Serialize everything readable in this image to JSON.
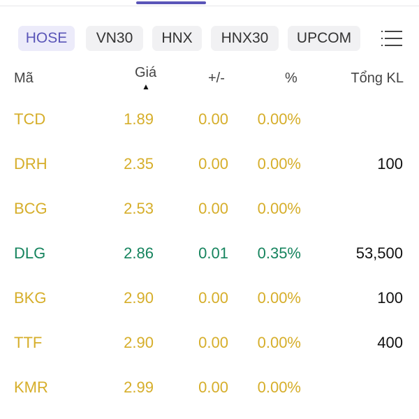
{
  "tabs": [
    "HOSE",
    "VN30",
    "HNX",
    "HNX30",
    "UPCOM"
  ],
  "active_tab": "HOSE",
  "menu_icon": "list-menu-icon",
  "columns": {
    "symbol": "Mã",
    "price": "Giá",
    "change": "+/-",
    "percent": "%",
    "volume": "Tổng KL"
  },
  "sort_indicator": "▲",
  "colors": {
    "unchanged": "#d6ae2a",
    "up": "#16845e",
    "accent": "#5a55b8"
  },
  "rows": [
    {
      "symbol": "TCD",
      "price": "1.89",
      "change": "0.00",
      "percent": "0.00%",
      "volume": "",
      "status": "unchanged"
    },
    {
      "symbol": "DRH",
      "price": "2.35",
      "change": "0.00",
      "percent": "0.00%",
      "volume": "100",
      "status": "unchanged"
    },
    {
      "symbol": "BCG",
      "price": "2.53",
      "change": "0.00",
      "percent": "0.00%",
      "volume": "",
      "status": "unchanged"
    },
    {
      "symbol": "DLG",
      "price": "2.86",
      "change": "0.01",
      "percent": "0.35%",
      "volume": "53,500",
      "status": "up"
    },
    {
      "symbol": "BKG",
      "price": "2.90",
      "change": "0.00",
      "percent": "0.00%",
      "volume": "100",
      "status": "unchanged"
    },
    {
      "symbol": "TTF",
      "price": "2.90",
      "change": "0.00",
      "percent": "0.00%",
      "volume": "400",
      "status": "unchanged"
    },
    {
      "symbol": "KMR",
      "price": "2.99",
      "change": "0.00",
      "percent": "0.00%",
      "volume": "",
      "status": "unchanged"
    }
  ]
}
